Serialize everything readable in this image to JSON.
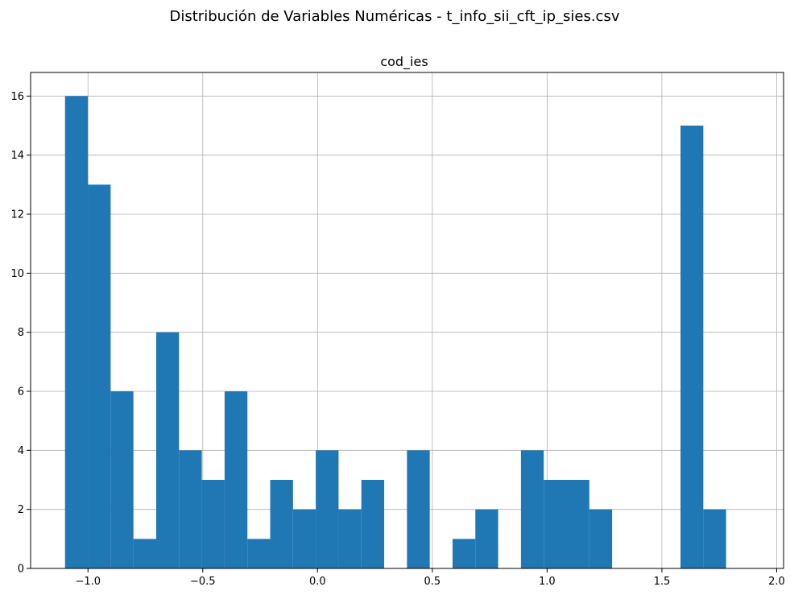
{
  "chart_data": {
    "type": "bar",
    "suptitle": "Distribución de Variables Numéricas - t_info_sii_cft_ip_sies.csv",
    "title": "cod_ies",
    "xlabel": "",
    "ylabel": "",
    "xlim": [
      -1.25,
      2.03
    ],
    "ylim": [
      0,
      16.8
    ],
    "grid": true,
    "bar_color": "#1f77b4",
    "grid_color": "#b0b0b0",
    "bin_start": -1.1,
    "bin_width": 0.0993,
    "counts": [
      16,
      13,
      6,
      1,
      8,
      4,
      3,
      6,
      1,
      3,
      2,
      4,
      2,
      3,
      0,
      4,
      0,
      1,
      2,
      0,
      4,
      3,
      3,
      2,
      0,
      0,
      0,
      15,
      2
    ],
    "xticks": [
      -1.0,
      -0.5,
      0.0,
      0.5,
      1.0,
      1.5,
      2.0
    ],
    "xtick_labels": [
      "−1.0",
      "−0.5",
      "0.0",
      "0.5",
      "1.0",
      "1.5",
      "2.0"
    ],
    "yticks": [
      0,
      2,
      4,
      6,
      8,
      10,
      12,
      14,
      16
    ],
    "ytick_labels": [
      "0",
      "2",
      "4",
      "6",
      "8",
      "10",
      "12",
      "14",
      "16"
    ]
  }
}
